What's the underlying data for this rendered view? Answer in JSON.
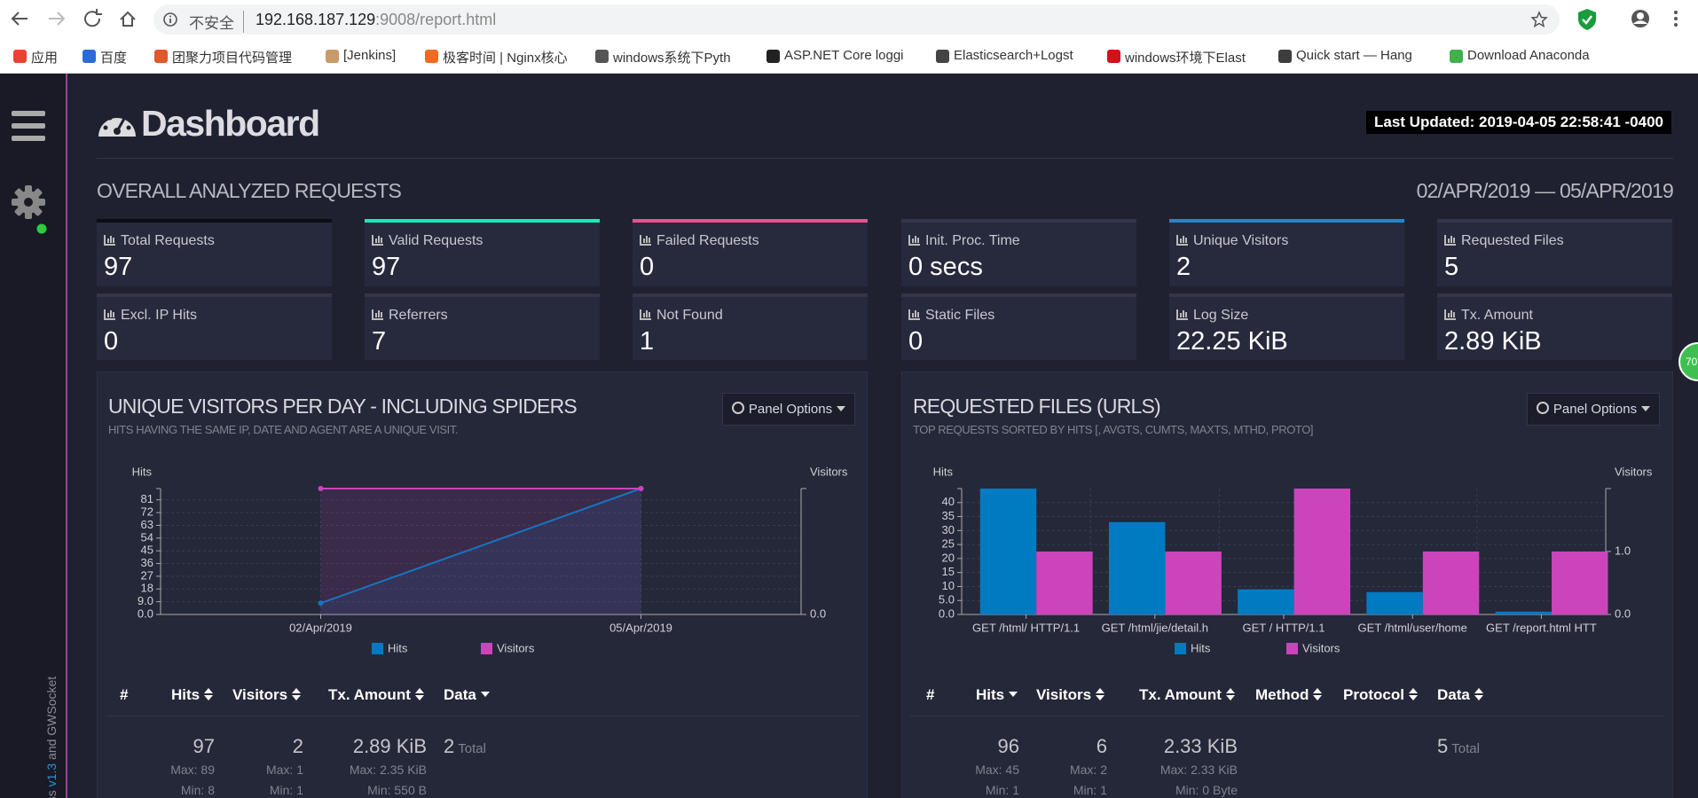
{
  "browser": {
    "security": "不安全",
    "url_host": "192.168.187.129",
    "url_rest": ":9008/report.html"
  },
  "bookmarks": [
    "应用",
    "百度",
    "团聚力项目代码管理",
    "[Jenkins]",
    "极客时间 | Nginx核心",
    "windows系统下Pyth",
    "ASP.NET Core loggi",
    "Elasticsearch+Logst",
    "windows环境下Elast",
    "Quick start — Hang",
    "Download Anaconda"
  ],
  "sidebar_footer": {
    "prefix": "ccess",
    "version": "v1.3",
    "suffix": "and GWSocket"
  },
  "side_badge": "70",
  "header": {
    "title": "Dashboard",
    "last_updated": "Last Updated: 2019-04-05 22:58:41 -0400"
  },
  "overall": {
    "title": "OVERALL ANALYZED REQUESTS",
    "date_range": "02/APR/2019 — 05/APR/2019"
  },
  "cards": [
    {
      "label": "Total Requests",
      "value": "97"
    },
    {
      "label": "Valid Requests",
      "value": "97"
    },
    {
      "label": "Failed Requests",
      "value": "0"
    },
    {
      "label": "Init. Proc. Time",
      "value": "0 secs"
    },
    {
      "label": "Unique Visitors",
      "value": "2"
    },
    {
      "label": "Requested Files",
      "value": "5"
    },
    {
      "label": "Excl. IP Hits",
      "value": "0"
    },
    {
      "label": "Referrers",
      "value": "7"
    },
    {
      "label": "Not Found",
      "value": "1"
    },
    {
      "label": "Static Files",
      "value": "0"
    },
    {
      "label": "Log Size",
      "value": "22.25 KiB"
    },
    {
      "label": "Tx. Amount",
      "value": "2.89 KiB"
    }
  ],
  "panels": [
    {
      "title": "UNIQUE VISITORS PER DAY - INCLUDING SPIDERS",
      "subtitle": "HITS HAVING THE SAME IP, DATE AND AGENT ARE A UNIQUE VISIT.",
      "options": "Panel Options",
      "chart": {
        "type": "line",
        "ylabel": "Hits",
        "y2label": "Visitors",
        "categories": [
          "02/Apr/2019",
          "05/Apr/2019"
        ],
        "series": [
          {
            "name": "Hits",
            "color": "#007bc2",
            "values": [
              8,
              89
            ]
          },
          {
            "name": "Visitors",
            "color": "#cc44bb",
            "values": [
              1,
              1
            ],
            "axis": "y2"
          }
        ],
        "ylim": [
          0,
          89
        ],
        "yticks": [
          {
            "value": 0,
            "label": "0.0"
          },
          {
            "value": 9,
            "label": "9.0"
          },
          18,
          27,
          36,
          45,
          54,
          63,
          72,
          81
        ],
        "y2lim": [
          0,
          1
        ],
        "y2ticks": [
          {
            "value": 0,
            "label": "0.0"
          }
        ],
        "grid": true
      },
      "table": {
        "headers": [
          "#",
          "Hits",
          "Visitors",
          "Tx. Amount",
          "Data"
        ],
        "summary": [
          {
            "total": "97",
            "max": "Max: 89",
            "min": "Min: 8"
          },
          {
            "total": "2",
            "max": "Max: 1",
            "min": "Min: 1"
          },
          {
            "total": "2.89 KiB",
            "max": "Max: 2.35 KiB",
            "min": "Min: 550 B"
          },
          {
            "total": "2",
            "note": "Total"
          }
        ]
      }
    },
    {
      "title": "REQUESTED FILES (URLS)",
      "subtitle": "TOP REQUESTS SORTED BY HITS [, AVGTS, CUMTS, MAXTS, MTHD, PROTO]",
      "options": "Panel Options",
      "chart": {
        "type": "bar",
        "ylabel": "Hits",
        "y2label": "Visitors",
        "categories": [
          "GET /html/ HTTP/1.1",
          "GET /html/jie/detail.h",
          "GET / HTTP/1.1",
          "GET /html/user/home",
          "GET /report.html HTT"
        ],
        "series": [
          {
            "name": "Hits",
            "color": "#007bc2",
            "values": [
              45,
              33,
              9,
              8,
              1
            ]
          },
          {
            "name": "Visitors",
            "color": "#cc44bb",
            "values": [
              1,
              1,
              2,
              1,
              1
            ],
            "axis": "y2"
          }
        ],
        "ylim": [
          0,
          45
        ],
        "yticks": [
          {
            "value": 0,
            "label": "0.0"
          },
          {
            "value": 5,
            "label": "5.0"
          },
          10,
          15,
          20,
          25,
          30,
          35,
          40
        ],
        "y2lim": [
          0,
          2
        ],
        "y2ticks": [
          {
            "value": 0,
            "label": "0.0"
          },
          {
            "value": 1,
            "label": "1.0"
          }
        ],
        "grid": true
      },
      "table": {
        "headers": [
          "#",
          "Hits",
          "Visitors",
          "Tx. Amount",
          "Method",
          "Protocol",
          "Data"
        ],
        "summary": [
          {
            "total": "96",
            "max": "Max: 45",
            "min": "Min: 1"
          },
          {
            "total": "6",
            "max": "Max: 2",
            "min": "Min: 1"
          },
          {
            "total": "2.33 KiB",
            "max": "Max: 2.33 KiB",
            "min": "Min: 0 Byte"
          },
          {
            "total": "5",
            "note": "Total"
          }
        ]
      }
    }
  ]
}
